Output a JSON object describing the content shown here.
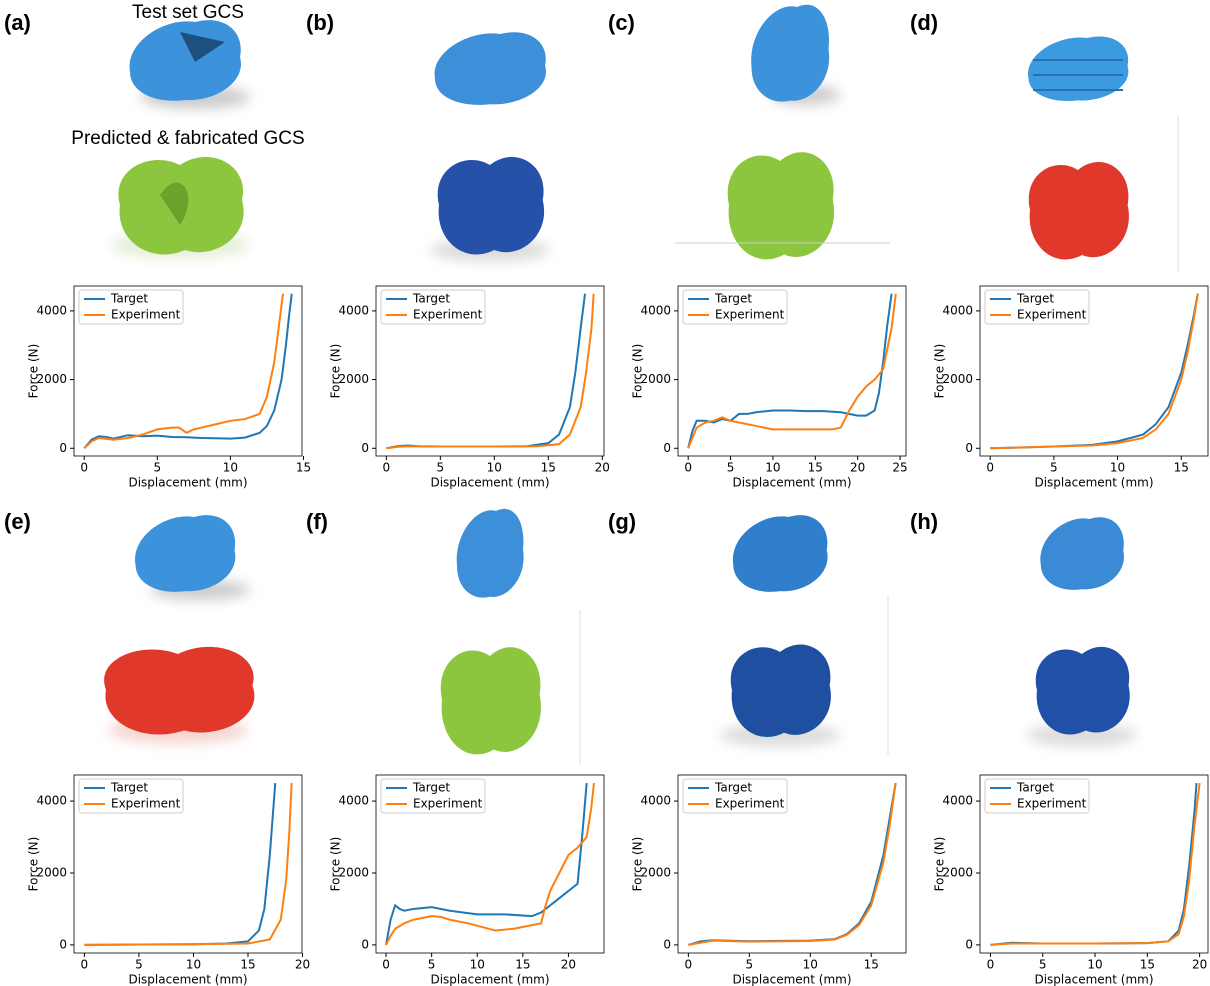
{
  "chart_data": [
    {
      "type": "line",
      "panel_label": "(a)",
      "annotations": [
        "Test set GCS",
        "Predicted & fabricated GCS"
      ],
      "xlabel": "Displacement (mm)",
      "ylabel": "Force (N)",
      "xlim": [
        -0.7,
        14.9
      ],
      "ylim": [
        -225,
        4725
      ],
      "xticks": [
        0,
        5,
        10,
        15
      ],
      "yticks": [
        0,
        2000,
        4000
      ],
      "legend": "upper left",
      "series": [
        {
          "name": "Target",
          "color": "#1f77b4",
          "x": [
            0,
            0.5,
            1,
            1.5,
            2,
            3,
            4,
            5,
            6,
            7,
            8,
            9,
            10,
            11,
            12,
            12.5,
            13,
            13.5,
            13.8,
            14,
            14.2
          ],
          "values": [
            0,
            250,
            350,
            330,
            280,
            380,
            350,
            370,
            330,
            320,
            300,
            290,
            280,
            310,
            450,
            650,
            1100,
            2000,
            3000,
            3800,
            4500
          ]
        },
        {
          "name": "Experiment",
          "color": "#ff7f0e",
          "x": [
            0,
            0.5,
            1,
            2,
            3,
            4,
            5,
            6,
            6.5,
            7,
            7.5,
            8,
            9,
            10,
            11,
            12,
            12.5,
            13,
            13.3,
            13.6
          ],
          "values": [
            0,
            200,
            300,
            250,
            300,
            400,
            550,
            600,
            600,
            450,
            550,
            600,
            700,
            800,
            850,
            1000,
            1500,
            2500,
            3500,
            4500
          ]
        }
      ]
    },
    {
      "type": "line",
      "panel_label": "(b)",
      "xlabel": "Displacement (mm)",
      "ylabel": "Force (N)",
      "xlim": [
        -0.96,
        20.16
      ],
      "ylim": [
        -225,
        4725
      ],
      "xticks": [
        0,
        5,
        10,
        15,
        20
      ],
      "yticks": [
        0,
        2000,
        4000
      ],
      "legend": "upper left",
      "series": [
        {
          "name": "Target",
          "color": "#1f77b4",
          "x": [
            0,
            1,
            2,
            3,
            5,
            10,
            13,
            15,
            16,
            17,
            17.5,
            18,
            18.4
          ],
          "values": [
            0,
            60,
            80,
            60,
            50,
            50,
            60,
            150,
            400,
            1200,
            2200,
            3500,
            4500
          ]
        },
        {
          "name": "Experiment",
          "color": "#ff7f0e",
          "x": [
            0,
            1,
            2,
            5,
            10,
            14,
            16,
            17,
            18,
            18.5,
            19,
            19.2
          ],
          "values": [
            0,
            40,
            60,
            50,
            50,
            60,
            120,
            400,
            1200,
            2200,
            3500,
            4500
          ]
        }
      ]
    },
    {
      "type": "line",
      "panel_label": "(c)",
      "xlabel": "Displacement (mm)",
      "ylabel": "Force (N)",
      "xlim": [
        -1.2,
        25.7
      ],
      "ylim": [
        -225,
        4725
      ],
      "xticks": [
        0,
        5,
        10,
        15,
        20,
        25
      ],
      "yticks": [
        0,
        2000,
        4000
      ],
      "legend": "upper left",
      "series": [
        {
          "name": "Target",
          "color": "#1f77b4",
          "x": [
            0,
            0.5,
            1,
            2,
            3,
            4,
            5,
            6,
            7,
            8,
            10,
            12,
            14,
            16,
            18,
            20,
            21,
            22,
            22.5,
            23,
            23.5,
            24
          ],
          "values": [
            0,
            500,
            800,
            800,
            750,
            850,
            800,
            1000,
            1000,
            1050,
            1100,
            1100,
            1080,
            1080,
            1050,
            950,
            950,
            1100,
            1600,
            2500,
            3600,
            4500
          ]
        },
        {
          "name": "Experiment",
          "color": "#ff7f0e",
          "x": [
            0,
            0.5,
            1,
            2,
            3,
            4,
            5,
            6,
            8,
            10,
            12,
            14,
            16,
            17,
            18,
            19,
            20,
            21,
            22,
            23,
            24,
            24.5
          ],
          "values": [
            0,
            300,
            600,
            750,
            800,
            900,
            800,
            750,
            650,
            550,
            550,
            550,
            550,
            550,
            600,
            1100,
            1500,
            1800,
            2000,
            2300,
            3500,
            4500
          ]
        }
      ]
    },
    {
      "type": "line",
      "panel_label": "(d)",
      "xlabel": "Displacement (mm)",
      "ylabel": "Force (N)",
      "xlim": [
        -0.8,
        17.1
      ],
      "ylim": [
        -225,
        4725
      ],
      "xticks": [
        0,
        5,
        10,
        15
      ],
      "yticks": [
        0,
        2000,
        4000
      ],
      "legend": "upper left",
      "series": [
        {
          "name": "Target",
          "color": "#1f77b4",
          "x": [
            0,
            2,
            5,
            8,
            10,
            12,
            13,
            14,
            15,
            15.5,
            16,
            16.3
          ],
          "values": [
            0,
            20,
            50,
            100,
            200,
            400,
            700,
            1200,
            2200,
            3000,
            3900,
            4500
          ]
        },
        {
          "name": "Experiment",
          "color": "#ff7f0e",
          "x": [
            0,
            2,
            5,
            8,
            10,
            12,
            13,
            14,
            15,
            15.5,
            16,
            16.3
          ],
          "values": [
            0,
            20,
            50,
            80,
            150,
            300,
            550,
            1000,
            2000,
            2800,
            3800,
            4500
          ]
        }
      ]
    },
    {
      "type": "line",
      "panel_label": "(e)",
      "xlabel": "Displacement (mm)",
      "ylabel": "Force (N)",
      "xlim": [
        -0.95,
        19.95
      ],
      "ylim": [
        -225,
        4725
      ],
      "xticks": [
        0,
        5,
        10,
        15,
        20
      ],
      "yticks": [
        0,
        2000,
        4000
      ],
      "legend": "upper left",
      "series": [
        {
          "name": "Target",
          "color": "#1f77b4",
          "x": [
            0,
            5,
            10,
            13,
            15,
            16,
            16.5,
            17,
            17.5
          ],
          "values": [
            0,
            10,
            20,
            40,
            100,
            400,
            1000,
            2500,
            4500
          ]
        },
        {
          "name": "Experiment",
          "color": "#ff7f0e",
          "x": [
            0,
            5,
            10,
            15,
            17,
            18,
            18.5,
            18.8,
            19
          ],
          "values": [
            0,
            10,
            20,
            40,
            150,
            700,
            1800,
            3200,
            4500
          ]
        }
      ]
    },
    {
      "type": "line",
      "panel_label": "(f)",
      "xlabel": "Displacement (mm)",
      "ylabel": "Force (N)",
      "xlim": [
        -1.1,
        23.9
      ],
      "ylim": [
        -225,
        4725
      ],
      "xticks": [
        0,
        5,
        10,
        15,
        20
      ],
      "yticks": [
        0,
        2000,
        4000
      ],
      "legend": "upper left",
      "series": [
        {
          "name": "Target",
          "color": "#1f77b4",
          "x": [
            0,
            0.5,
            1,
            1.5,
            2,
            3,
            5,
            7,
            10,
            13,
            16,
            17,
            18,
            19,
            20,
            21,
            21.5,
            22
          ],
          "values": [
            0,
            700,
            1100,
            1000,
            950,
            1000,
            1050,
            950,
            850,
            850,
            800,
            900,
            1100,
            1300,
            1500,
            1700,
            3000,
            4500
          ]
        },
        {
          "name": "Experiment",
          "color": "#ff7f0e",
          "x": [
            0,
            0.5,
            1,
            2,
            3,
            5,
            6,
            7,
            9,
            12,
            14,
            16,
            17,
            17.5,
            18,
            19,
            20,
            21,
            22,
            22.5,
            22.8
          ],
          "values": [
            0,
            250,
            450,
            600,
            700,
            800,
            780,
            700,
            600,
            400,
            450,
            550,
            600,
            1100,
            1500,
            2000,
            2500,
            2700,
            3000,
            3800,
            4500
          ]
        }
      ]
    },
    {
      "type": "line",
      "panel_label": "(g)",
      "xlabel": "Displacement (mm)",
      "ylabel": "Force (N)",
      "xlim": [
        -0.85,
        17.85
      ],
      "ylim": [
        -225,
        4725
      ],
      "xticks": [
        0,
        5,
        10,
        15
      ],
      "yticks": [
        0,
        2000,
        4000
      ],
      "legend": "upper left",
      "series": [
        {
          "name": "Target",
          "color": "#1f77b4",
          "x": [
            0,
            1,
            2,
            5,
            10,
            12,
            13,
            14,
            15,
            16,
            16.5,
            17
          ],
          "values": [
            0,
            100,
            130,
            100,
            120,
            160,
            300,
            600,
            1200,
            2500,
            3500,
            4500
          ]
        },
        {
          "name": "Experiment",
          "color": "#ff7f0e",
          "x": [
            0,
            1,
            2,
            5,
            10,
            12,
            13,
            14,
            15,
            16,
            16.5,
            17
          ],
          "values": [
            0,
            60,
            120,
            90,
            110,
            150,
            280,
            550,
            1100,
            2300,
            3300,
            4500
          ]
        }
      ]
    },
    {
      "type": "line",
      "panel_label": "(h)",
      "xlabel": "Displacement (mm)",
      "ylabel": "Force (N)",
      "xlim": [
        -1,
        20.8
      ],
      "ylim": [
        -225,
        4725
      ],
      "xticks": [
        0,
        5,
        10,
        15,
        20
      ],
      "yticks": [
        0,
        2000,
        4000
      ],
      "legend": "upper left",
      "series": [
        {
          "name": "Target",
          "color": "#1f77b4",
          "x": [
            0,
            2,
            5,
            10,
            15,
            17,
            18,
            18.5,
            19,
            19.5,
            19.7
          ],
          "values": [
            0,
            60,
            40,
            40,
            50,
            100,
            400,
            1000,
            2200,
            3700,
            4500
          ]
        },
        {
          "name": "Experiment",
          "color": "#ff7f0e",
          "x": [
            0,
            2,
            5,
            10,
            15,
            17,
            18,
            18.5,
            19,
            19.5,
            20
          ],
          "values": [
            0,
            40,
            40,
            40,
            50,
            100,
            300,
            800,
            1800,
            3300,
            4500
          ]
        }
      ]
    }
  ]
}
